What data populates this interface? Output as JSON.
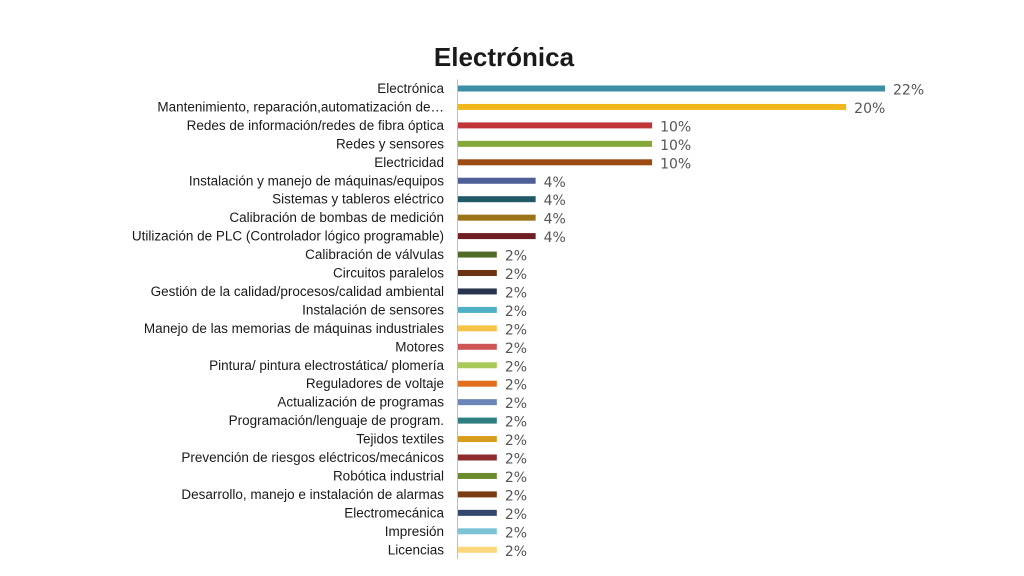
{
  "chart_data": {
    "type": "bar",
    "orientation": "horizontal",
    "title": "Electrónica",
    "xlim": [
      0,
      22
    ],
    "value_suffix": "%",
    "categories": [
      "Electrónica",
      "Mantenimiento, reparación,automatización de…",
      "Redes de información/redes de fibra óptica",
      "Redes y sensores",
      "Electricidad",
      "Instalación y manejo de máquinas/equipos",
      "Sistemas y tableros eléctrico",
      "Calibración de bombas de medición",
      "Utilización de PLC (Controlador lógico programable)",
      "Calibración de válvulas",
      "Circuitos paralelos",
      "Gestión de la calidad/procesos/calidad ambiental",
      "Instalación de sensores",
      "Manejo de las memorias de máquinas industriales",
      "Motores",
      "Pintura/ pintura electrostática/ plomería",
      "Reguladores de voltaje",
      "Actualización de programas",
      "Programación/lenguaje de program.",
      "Tejidos textiles",
      "Prevención de riesgos eléctricos/mecánicos",
      "Robótica industrial",
      "Desarrollo, manejo e instalación de alarmas",
      "Electromecánica",
      "Impresión",
      "Licencias"
    ],
    "values": [
      22,
      20,
      10,
      10,
      10,
      4,
      4,
      4,
      4,
      2,
      2,
      2,
      2,
      2,
      2,
      2,
      2,
      2,
      2,
      2,
      2,
      2,
      2,
      2,
      2,
      2
    ],
    "colors": [
      "#3d8fa6",
      "#f2b81b",
      "#c0353a",
      "#86a83a",
      "#9c4a12",
      "#4d5f96",
      "#215a66",
      "#9c7418",
      "#6e1f24",
      "#506b26",
      "#6b3312",
      "#28334f",
      "#4fb0c6",
      "#f7c44a",
      "#cf5656",
      "#a9c95a",
      "#e0701e",
      "#6b85b8",
      "#2e7d80",
      "#d89d1c",
      "#8e2b2f",
      "#6a8a2e",
      "#7a3b12",
      "#33466e",
      "#7cc3d6",
      "#f9d77a"
    ],
    "grid": false,
    "legend": "none"
  }
}
